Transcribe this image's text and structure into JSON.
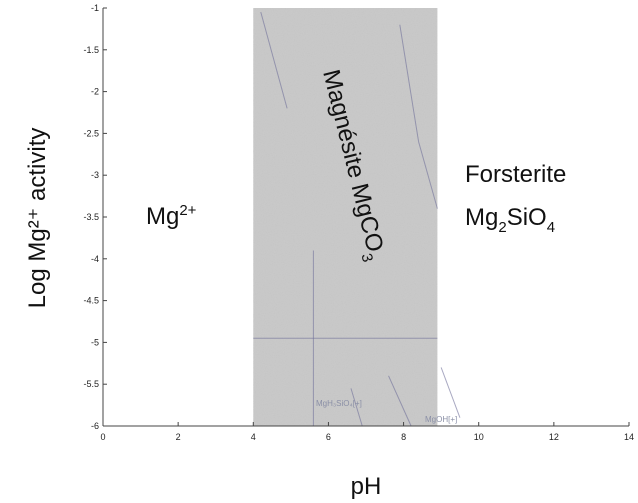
{
  "chart_data": {
    "type": "area",
    "xlabel": "pH",
    "ylabel": "Log Mg²⁺ activity",
    "xlim": [
      0,
      14
    ],
    "ylim": [
      -6,
      -1
    ],
    "x_ticks": [
      0,
      2,
      4,
      6,
      8,
      10,
      12,
      14
    ],
    "y_ticks": [
      -1,
      -1.5,
      -2,
      -2.5,
      -3,
      -3.5,
      -4,
      -4.5,
      -5,
      -5.5,
      -6
    ],
    "grid": false,
    "regions": [
      {
        "name": "Mg2+",
        "label": "Mg",
        "sup": "2+",
        "x_range": [
          0,
          4
        ]
      },
      {
        "name": "Magnesite",
        "label": "Magnésite MgCO",
        "sub": "3",
        "x_range": [
          4,
          8.9
        ]
      },
      {
        "name": "Forsterite",
        "label_line1": "Forsterite",
        "label_line2": "Mg",
        "sub1": "2",
        "mid": "SiO",
        "sub2": "4",
        "x_range": [
          8.9,
          14
        ]
      }
    ],
    "background_labels": [
      "MgH₃SiO₄[+]",
      "MgOH[+]"
    ]
  },
  "colors": {
    "magnesite_fill": "#c9c9c9",
    "axis": "#444444",
    "faint_lines": "#6f6f9a"
  }
}
